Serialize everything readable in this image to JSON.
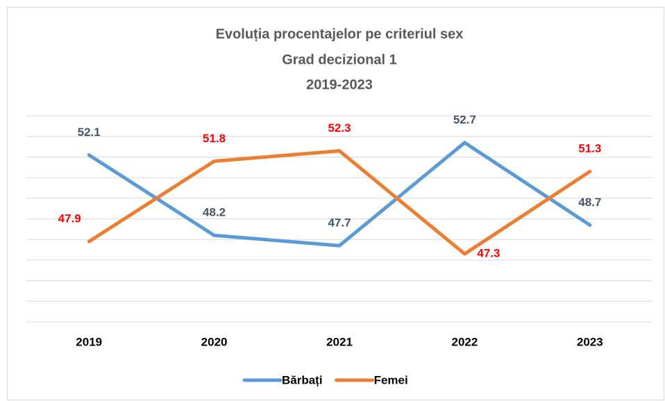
{
  "chart_data": {
    "type": "line",
    "title": [
      "Evoluția procentajelor pe criteriul sex",
      "Grad decizional 1",
      "2019-2023"
    ],
    "categories": [
      "2019",
      "2020",
      "2021",
      "2022",
      "2023"
    ],
    "series": [
      {
        "name": "Bărbați",
        "color": "#5b9bd5",
        "label_color": "#44546a",
        "values": [
          52.1,
          48.2,
          47.7,
          52.7,
          48.7
        ]
      },
      {
        "name": "Femei",
        "color": "#ed7d31",
        "label_color": "#ff0000",
        "values": [
          47.9,
          51.8,
          52.3,
          47.3,
          51.3
        ]
      }
    ],
    "ylim": [
      44,
      54
    ],
    "yticks": [
      44,
      45,
      46,
      47,
      48,
      49,
      50,
      51,
      52,
      53,
      54
    ],
    "grid": true,
    "legend": "bottom"
  }
}
